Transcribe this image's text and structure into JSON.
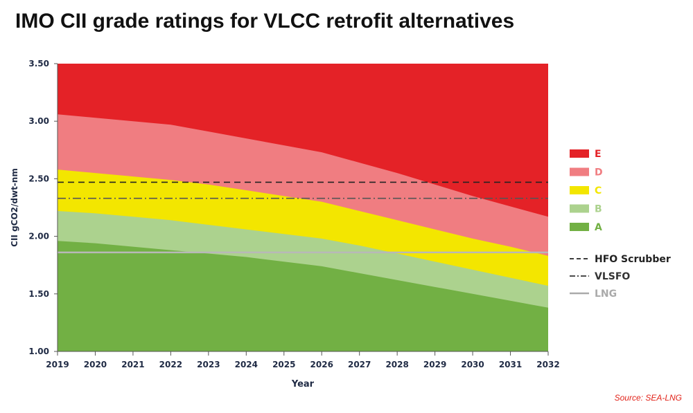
{
  "title": "IMO CII grade ratings for VLCC retrofit alternatives",
  "source": "Source: SEA-LNG",
  "chart_data": {
    "type": "area",
    "title": "IMO CII grade ratings for VLCC retrofit alternatives",
    "xlabel": "Year",
    "ylabel": "CII gCO2/dwt-nm",
    "x": [
      2019,
      2020,
      2021,
      2022,
      2023,
      2024,
      2025,
      2026,
      2027,
      2028,
      2029,
      2030,
      2031,
      2032
    ],
    "x_tick_labels": [
      "2019",
      "2020",
      "2021",
      "2022",
      "2023",
      "2024",
      "2025",
      "2026",
      "2027",
      "2028",
      "2029",
      "2030",
      "2031",
      "2032"
    ],
    "ylim": [
      1.0,
      3.5
    ],
    "y_ticks": [
      1.0,
      1.5,
      2.0,
      2.5,
      3.0,
      3.5
    ],
    "y_tick_labels": [
      "1.00",
      "1.50",
      "2.00",
      "2.50",
      "3.00",
      "3.50"
    ],
    "grid": false,
    "legend_position": "right",
    "bands": [
      {
        "name": "A",
        "color": "#72b044",
        "upper": [
          1.96,
          1.94,
          1.91,
          1.88,
          1.85,
          1.82,
          1.78,
          1.74,
          1.68,
          1.62,
          1.56,
          1.5,
          1.44,
          1.38
        ]
      },
      {
        "name": "B",
        "color": "#acd28e",
        "upper": [
          2.22,
          2.2,
          2.17,
          2.14,
          2.1,
          2.06,
          2.02,
          1.98,
          1.92,
          1.85,
          1.78,
          1.71,
          1.64,
          1.57
        ]
      },
      {
        "name": "C",
        "color": "#f3e600",
        "upper": [
          2.58,
          2.55,
          2.52,
          2.49,
          2.45,
          2.4,
          2.35,
          2.3,
          2.22,
          2.14,
          2.06,
          1.98,
          1.91,
          1.83
        ]
      },
      {
        "name": "D",
        "color": "#f07d81",
        "upper": [
          3.06,
          3.03,
          3.0,
          2.97,
          2.91,
          2.85,
          2.79,
          2.73,
          2.64,
          2.55,
          2.45,
          2.35,
          2.26,
          2.17
        ]
      },
      {
        "name": "E",
        "color": "#e42227",
        "upper": [
          3.5,
          3.5,
          3.5,
          3.5,
          3.5,
          3.5,
          3.5,
          3.5,
          3.5,
          3.5,
          3.5,
          3.5,
          3.5,
          3.5
        ]
      }
    ],
    "reference_lines": [
      {
        "name": "HFO Scrubber",
        "value": 2.47,
        "style": "dashed",
        "color": "#222222",
        "legend_color": "#222222"
      },
      {
        "name": "VLSFO",
        "value": 2.33,
        "style": "dashdot",
        "color": "#555555",
        "legend_color": "#333333"
      },
      {
        "name": "LNG",
        "value": 1.86,
        "style": "solid",
        "color": "#b8b8b8",
        "legend_color": "#aaaaaa"
      }
    ],
    "legend_order": [
      "E",
      "D",
      "C",
      "B",
      "A"
    ]
  }
}
